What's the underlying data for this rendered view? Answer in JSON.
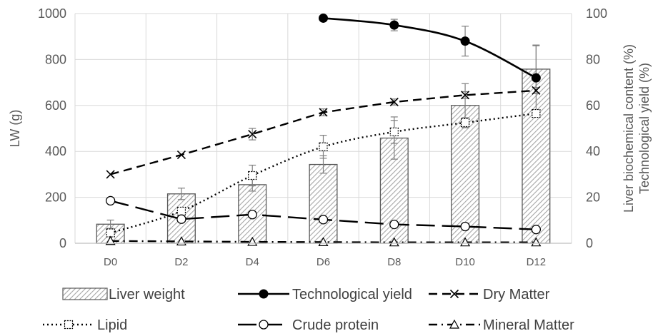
{
  "chart_data": {
    "type": "bar",
    "categories": [
      "D0",
      "D2",
      "D4",
      "D6",
      "D8",
      "D10",
      "D12"
    ],
    "y_left": {
      "label": "LW (g)",
      "range": [
        0,
        1000
      ],
      "ticks": [
        "0",
        "200",
        "400",
        "600",
        "800",
        "1000"
      ]
    },
    "y_right": {
      "label_line1": "Liver biochemical content (%)",
      "label_line2": "Technological yield (%)",
      "range": [
        0,
        100
      ],
      "ticks": [
        "0",
        "20",
        "40",
        "60",
        "80",
        "100"
      ]
    },
    "grid": true,
    "legend_position": "bottom",
    "bars": {
      "name": "Liver weight",
      "axis": "left",
      "values": [
        83,
        215,
        255,
        343,
        458,
        600,
        758
      ],
      "errors": [
        18,
        25,
        28,
        38,
        92,
        95,
        105
      ]
    },
    "series": [
      {
        "name": "Technological yield",
        "axis": "right",
        "style": "solid",
        "marker": "filled-circle",
        "smooth": true,
        "values": [
          null,
          null,
          null,
          98,
          95,
          88,
          72
        ],
        "errors": [
          null,
          null,
          null,
          0,
          2.5,
          6.5,
          14
        ]
      },
      {
        "name": "Dry Matter",
        "axis": "right",
        "style": "dashed",
        "marker": "x",
        "values": [
          30,
          38.5,
          47.5,
          57,
          61.5,
          64.5,
          66.5
        ],
        "errors": [
          0,
          0,
          2.5,
          1.5,
          1.3,
          1.5,
          1.3
        ]
      },
      {
        "name": "Lipid",
        "axis": "right",
        "style": "dotted",
        "marker": "open-square",
        "smooth": true,
        "values": [
          4.5,
          14,
          29.5,
          42,
          48.5,
          52.5,
          56.5
        ],
        "errors": [
          1.5,
          1.5,
          4.5,
          5,
          5,
          2.2,
          1.5
        ]
      },
      {
        "name": "Crude protein",
        "axis": "right",
        "style": "longdash",
        "marker": "open-circle",
        "values": [
          18.5,
          10.5,
          12.5,
          10.3,
          8.2,
          7.3,
          6
        ],
        "errors": [
          0,
          0,
          0,
          0,
          0,
          0,
          0
        ]
      },
      {
        "name": "Mineral Matter",
        "axis": "right",
        "style": "dashdot",
        "marker": "open-triangle",
        "values": [
          1,
          0.8,
          0.6,
          0.5,
          0.4,
          0.4,
          0.4
        ],
        "errors": [
          0,
          0,
          0,
          0,
          0,
          0,
          0
        ]
      }
    ]
  },
  "colors": {
    "axis_text": "#595959",
    "grid": "#d9d9d9",
    "line": "#000000",
    "bar_border": "#595959",
    "bar_hatch": "#a6a6a6"
  }
}
